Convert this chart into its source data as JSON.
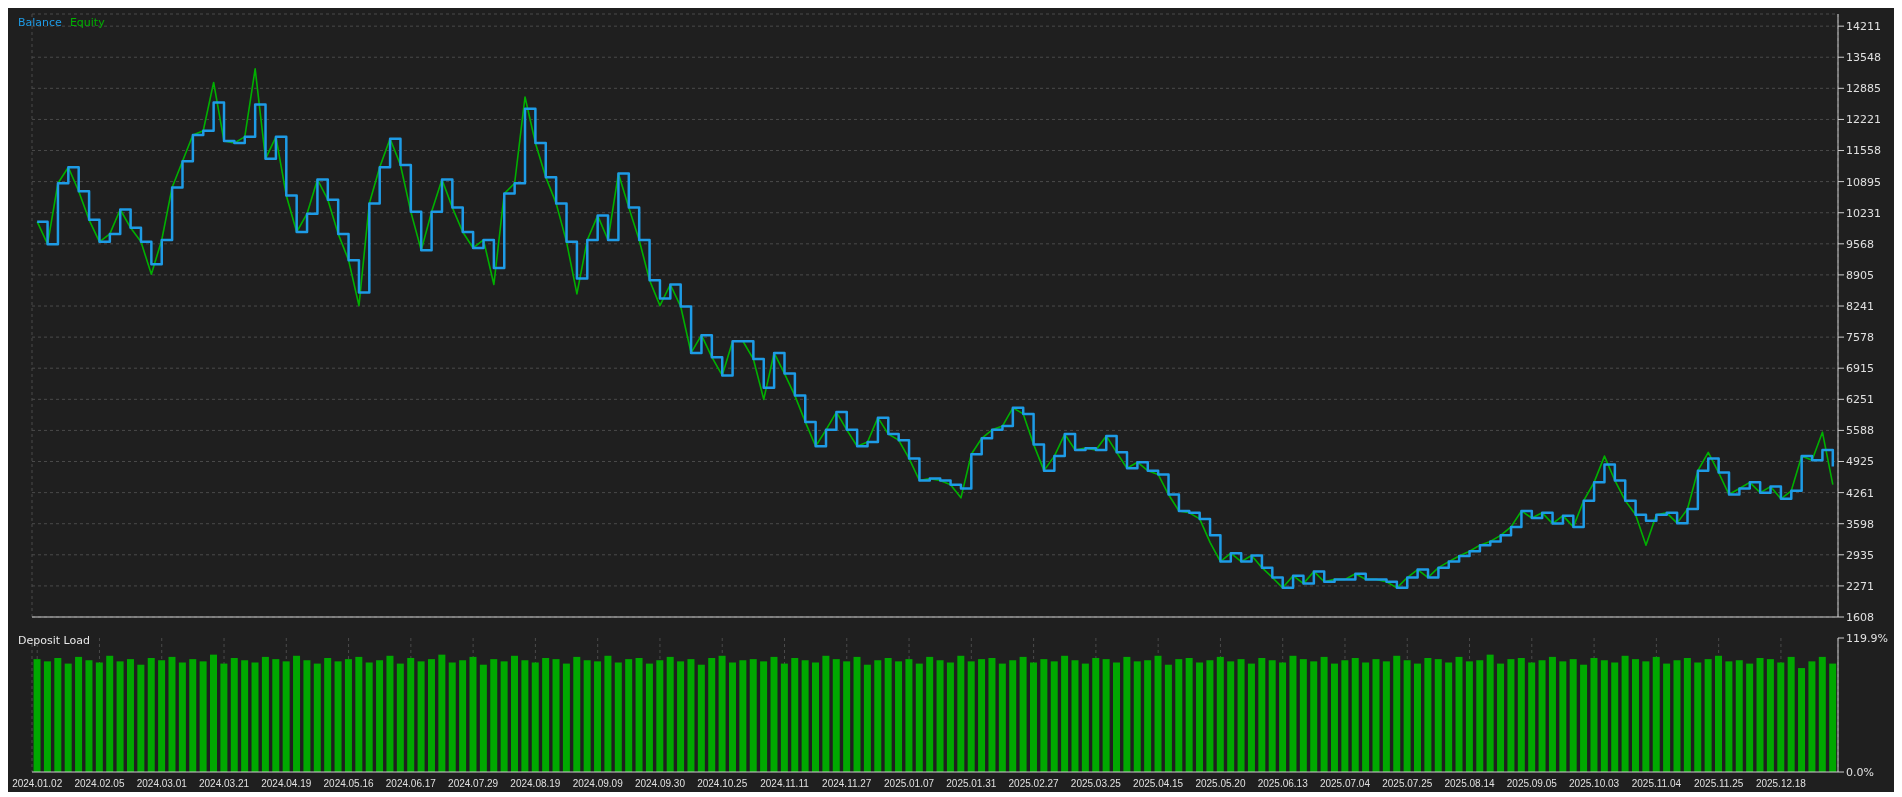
{
  "chart_data": [
    {
      "type": "line",
      "legend": "top left",
      "grid": true,
      "tick_labels": "y",
      "categories": [
        "2024.01.02",
        null,
        null,
        null,
        null,
        null,
        "2024.02.05",
        null,
        null,
        null,
        null,
        null,
        "2024.03.01",
        null,
        null,
        null,
        null,
        null,
        "2024.03.21",
        null,
        null,
        null,
        null,
        null,
        "2024.04.19",
        null,
        null,
        null,
        null,
        null,
        "2024.05.16",
        null,
        null,
        null,
        null,
        null,
        "2024.06.17",
        null,
        null,
        null,
        null,
        null,
        "2024.07.29",
        null,
        null,
        null,
        null,
        null,
        "2024.08.19",
        null,
        null,
        null,
        null,
        null,
        "2024.09.09",
        null,
        null,
        null,
        null,
        null,
        "2024.09.30",
        null,
        null,
        null,
        null,
        null,
        "2024.10.25",
        null,
        null,
        null,
        null,
        null,
        "2024.11.11",
        null,
        null,
        null,
        null,
        null,
        "2024.11.27",
        null,
        null,
        null,
        null,
        null,
        "2025.01.07",
        null,
        null,
        null,
        null,
        null,
        "2025.01.31",
        null,
        null,
        null,
        null,
        null,
        "2025.02.27",
        null,
        null,
        null,
        null,
        null,
        "2025.03.25",
        null,
        null,
        null,
        null,
        null,
        "2025.04.15",
        null,
        null,
        null,
        null,
        null,
        "2025.05.20",
        null,
        null,
        null,
        null,
        null,
        "2025.06.13",
        null,
        null,
        null,
        null,
        null,
        "2025.07.04",
        null,
        null,
        null,
        null,
        null,
        "2025.07.25",
        null,
        null,
        null,
        null,
        null,
        "2025.08.14",
        null,
        null,
        null,
        null,
        null,
        "2025.09.05",
        null,
        null,
        null,
        null,
        null,
        "2025.10.03",
        null,
        null,
        null,
        null,
        null,
        "2025.11.04",
        null,
        null,
        null,
        null,
        null,
        "2025.11.25",
        null,
        null,
        null,
        null,
        null,
        "2025.12.18",
        null,
        null,
        null,
        null,
        null
      ],
      "ylim": [
        1608,
        14470
      ],
      "yticks": [
        1608,
        2271,
        2935,
        3598,
        4261,
        4925,
        5588,
        6251,
        6915,
        7578,
        8241,
        8905,
        9568,
        10231,
        10895,
        11558,
        12221,
        12885,
        13548,
        14211
      ],
      "series": [
        {
          "name": "Balance",
          "type": "step",
          "color": "#1e9be6",
          "values": [
            10040,
            9560,
            10860,
            11200,
            10690,
            10080,
            9610,
            9780,
            10300,
            9910,
            9610,
            9130,
            9650,
            10770,
            11330,
            11890,
            11980,
            12580,
            11760,
            11720,
            11850,
            12540,
            11380,
            11850,
            10600,
            9820,
            10210,
            10940,
            10510,
            9780,
            9220,
            8530,
            10430,
            11200,
            11810,
            11250,
            10250,
            9430,
            10250,
            10940,
            10340,
            9820,
            9480,
            9650,
            9050,
            10640,
            10860,
            12450,
            11720,
            10990,
            10430,
            9610,
            8830,
            9650,
            10170,
            9650,
            11070,
            10340,
            9650,
            8790,
            8400,
            8700,
            8230,
            7240,
            7620,
            7150,
            6760,
            7490,
            7490,
            7110,
            6500,
            7240,
            6800,
            6330,
            5770,
            5250,
            5600,
            5980,
            5600,
            5250,
            5340,
            5860,
            5510,
            5380,
            4990,
            4520,
            4560,
            4520,
            4430,
            4350,
            5080,
            5420,
            5600,
            5680,
            6070,
            5940,
            5290,
            4730,
            5040,
            5510,
            5170,
            5210,
            5170,
            5470,
            5120,
            4780,
            4910,
            4730,
            4650,
            4220,
            3870,
            3830,
            3700,
            3350,
            2790,
            2970,
            2790,
            2920,
            2660,
            2450,
            2230,
            2490,
            2320,
            2580,
            2360,
            2410,
            2410,
            2530,
            2410,
            2410,
            2360,
            2230,
            2450,
            2620,
            2450,
            2660,
            2790,
            2910,
            3010,
            3140,
            3220,
            3350,
            3530,
            3870,
            3720,
            3830,
            3600,
            3770,
            3530,
            4090,
            4480,
            4860,
            4520,
            4090,
            3790,
            3660,
            3790,
            3830,
            3610,
            3910,
            4730,
            4990,
            4690,
            4220,
            4350,
            4480,
            4260,
            4390,
            4130,
            4300,
            5040,
            4950,
            5170,
            4820
          ]
        },
        {
          "name": "Equity",
          "type": "line",
          "color": "#00b000",
          "values": [
            10040,
            9560,
            10860,
            11200,
            10690,
            10080,
            9610,
            9780,
            10300,
            9910,
            9610,
            8920,
            9650,
            10770,
            11330,
            11890,
            11980,
            13010,
            11760,
            11720,
            11850,
            13300,
            11380,
            11850,
            10600,
            9820,
            10210,
            10940,
            10510,
            9780,
            9220,
            8250,
            10430,
            11200,
            11810,
            11250,
            10250,
            9430,
            10250,
            10940,
            10340,
            9820,
            9480,
            9650,
            8700,
            10640,
            10860,
            12700,
            11720,
            10990,
            10430,
            9610,
            8500,
            9650,
            10170,
            9650,
            11070,
            10340,
            9650,
            8790,
            8250,
            8700,
            8230,
            7240,
            7620,
            7150,
            6760,
            7490,
            7490,
            7110,
            6250,
            7240,
            6800,
            6330,
            5770,
            5250,
            5600,
            5980,
            5600,
            5250,
            5340,
            5860,
            5510,
            5380,
            4990,
            4520,
            4560,
            4520,
            4430,
            4150,
            5080,
            5420,
            5600,
            5680,
            6070,
            5940,
            5290,
            4730,
            5040,
            5510,
            5170,
            5210,
            5170,
            5470,
            5120,
            4780,
            4910,
            4730,
            4650,
            4220,
            3870,
            3830,
            3700,
            3200,
            2790,
            2970,
            2790,
            2920,
            2660,
            2450,
            2230,
            2490,
            2320,
            2580,
            2360,
            2410,
            2410,
            2530,
            2410,
            2410,
            2360,
            2230,
            2450,
            2620,
            2450,
            2660,
            2790,
            2910,
            3010,
            3140,
            3220,
            3350,
            3530,
            3870,
            3720,
            3830,
            3600,
            3770,
            3530,
            4090,
            4480,
            5040,
            4520,
            4090,
            3790,
            3140,
            3790,
            3830,
            3610,
            3910,
            4730,
            5120,
            4690,
            4220,
            4350,
            4480,
            4260,
            4390,
            4130,
            4300,
            5040,
            4950,
            5550,
            4430
          ]
        }
      ]
    },
    {
      "type": "bar",
      "title": "Deposit Load",
      "grid": "x",
      "color": "#00a800",
      "categories": [
        "2024.01.02",
        null,
        null,
        null,
        null,
        null,
        "2024.02.05",
        null,
        null,
        null,
        null,
        null,
        "2024.03.01",
        null,
        null,
        null,
        null,
        null,
        "2024.03.21",
        null,
        null,
        null,
        null,
        null,
        "2024.04.19",
        null,
        null,
        null,
        null,
        null,
        "2024.05.16",
        null,
        null,
        null,
        null,
        null,
        "2024.06.17",
        null,
        null,
        null,
        null,
        null,
        "2024.07.29",
        null,
        null,
        null,
        null,
        null,
        "2024.08.19",
        null,
        null,
        null,
        null,
        null,
        "2024.09.09",
        null,
        null,
        null,
        null,
        null,
        "2024.09.30",
        null,
        null,
        null,
        null,
        null,
        "2024.10.25",
        null,
        null,
        null,
        null,
        null,
        "2024.11.11",
        null,
        null,
        null,
        null,
        null,
        "2024.11.27",
        null,
        null,
        null,
        null,
        null,
        "2025.01.07",
        null,
        null,
        null,
        null,
        null,
        "2025.01.31",
        null,
        null,
        null,
        null,
        null,
        "2025.02.27",
        null,
        null,
        null,
        null,
        null,
        "2025.03.25",
        null,
        null,
        null,
        null,
        null,
        "2025.04.15",
        null,
        null,
        null,
        null,
        null,
        "2025.05.20",
        null,
        null,
        null,
        null,
        null,
        "2025.06.13",
        null,
        null,
        null,
        null,
        null,
        "2025.07.04",
        null,
        null,
        null,
        null,
        null,
        "2025.07.25",
        null,
        null,
        null,
        null,
        null,
        "2025.08.14",
        null,
        null,
        null,
        null,
        null,
        "2025.09.05",
        null,
        null,
        null,
        null,
        null,
        "2025.10.03",
        null,
        null,
        null,
        null,
        null,
        "2025.11.04",
        null,
        null,
        null,
        null,
        null,
        "2025.11.25",
        null,
        null,
        null,
        null,
        null,
        "2025.12.18",
        null,
        null,
        null,
        null,
        null
      ],
      "ylim": [
        0,
        119.9
      ],
      "yticks": [
        {
          "value": 0,
          "label": "0.0%"
        },
        {
          "value": 119.9,
          "label": "119.9%"
        }
      ],
      "values": [
        101,
        99,
        102,
        97,
        103,
        100,
        98,
        104,
        99,
        101,
        96,
        102,
        100,
        103,
        98,
        101,
        99,
        105,
        97,
        102,
        100,
        98,
        103,
        101,
        99,
        104,
        100,
        97,
        102,
        99,
        101,
        103,
        98,
        100,
        104,
        97,
        102,
        99,
        101,
        105,
        98,
        100,
        103,
        96,
        101,
        99,
        104,
        100,
        98,
        102,
        101,
        97,
        103,
        100,
        99,
        104,
        98,
        101,
        102,
        97,
        100,
        103,
        99,
        101,
        96,
        102,
        104,
        98,
        100,
        101,
        99,
        103,
        97,
        102,
        100,
        98,
        104,
        101,
        99,
        103,
        96,
        100,
        102,
        99,
        101,
        97,
        103,
        100,
        98,
        104,
        99,
        101,
        102,
        97,
        100,
        103,
        98,
        101,
        99,
        104,
        100,
        97,
        102,
        101,
        98,
        103,
        99,
        100,
        104,
        96,
        101,
        102,
        98,
        100,
        103,
        99,
        101,
        97,
        102,
        100,
        98,
        104,
        101,
        99,
        103,
        97,
        100,
        102,
        98,
        101,
        99,
        104,
        100,
        97,
        102,
        101,
        98,
        103,
        99,
        100,
        105,
        97,
        101,
        102,
        98,
        100,
        103,
        99,
        101,
        96,
        102,
        100,
        98,
        104,
        101,
        99,
        103,
        97,
        100,
        102,
        98,
        101,
        104,
        99,
        100,
        97,
        102,
        101,
        98,
        103,
        93,
        99,
        103,
        97
      ]
    }
  ]
}
